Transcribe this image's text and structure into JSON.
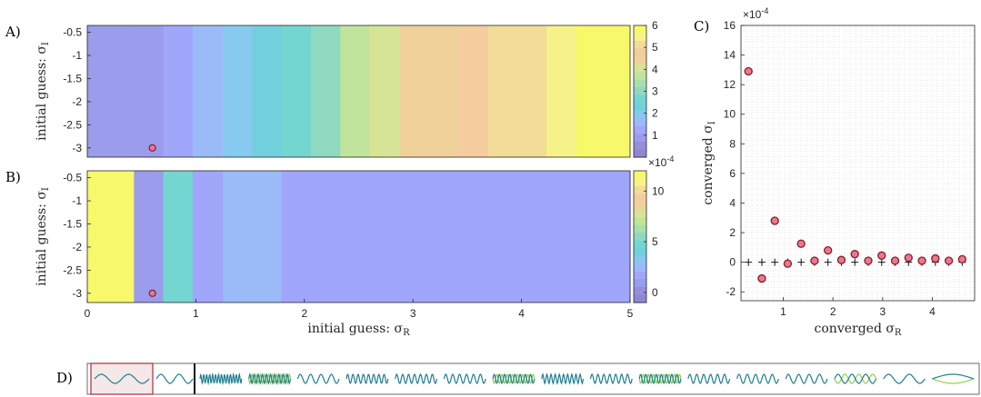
{
  "panel_labels": {
    "a": "A)",
    "b": "B)",
    "c": "C)",
    "d": "D)"
  },
  "colors": {
    "viridis_light": [
      "#9086d2",
      "#958ed8",
      "#9b9ceb",
      "#a0a6fa",
      "#9bbbf8",
      "#88c9ef",
      "#72d0dc",
      "#74d6d1",
      "#8ed9bf",
      "#a7e0ac",
      "#c0e49b",
      "#d6e595",
      "#f0d19a",
      "#f5cc9e",
      "#f2dc97",
      "#f6f28a",
      "#f7f86a"
    ],
    "marker_fill": "#e8798e",
    "marker_edge": "#8b1a2a",
    "wave_teal": "#1f7f8f",
    "wave_green": "#8fd14f",
    "highlight_box": "#b43a4a"
  },
  "chart_data": [
    {
      "id": "A",
      "type": "heatmap",
      "xlim": [
        0,
        5
      ],
      "ylim": [
        -3.2,
        -0.35
      ],
      "yticks": [
        "-0.5",
        "-1",
        "-1.5",
        "-2",
        "-2.5",
        "-3"
      ],
      "ylabel": "initial guess: σ",
      "ylabel_sub": "I",
      "column_edges": [
        0,
        0.43,
        0.7,
        0.97,
        1.25,
        1.52,
        1.79,
        2.06,
        2.33,
        2.6,
        2.88,
        3.15,
        3.42,
        3.69,
        3.96,
        4.23,
        4.5,
        4.77,
        5.0
      ],
      "column_values": [
        0.1,
        0.13,
        0.18,
        0.24,
        0.3,
        0.37,
        0.45,
        0.53,
        0.6,
        0.66,
        0.72,
        0.78,
        0.84,
        0.88,
        0.9,
        0.93,
        0.97,
        1.0
      ],
      "colorbar": {
        "ticks": [
          "6",
          "5",
          "4",
          "3",
          "2",
          "1"
        ],
        "exponent": "×10",
        "exponent_power": "-4",
        "range": [
          0,
          6
        ]
      },
      "marker": {
        "x": 0.6,
        "y": -3
      }
    },
    {
      "id": "B",
      "type": "heatmap",
      "xlim": [
        0,
        5
      ],
      "ylim": [
        -3.2,
        -0.35
      ],
      "xticks": [
        "0",
        "1",
        "2",
        "3",
        "4",
        "5"
      ],
      "yticks": [
        "-0.5",
        "-1",
        "-1.5",
        "-2",
        "-2.5",
        "-3"
      ],
      "xlabel": "initial guess: σ",
      "xlabel_sub": "R",
      "ylabel": "initial guess: σ",
      "ylabel_sub": "I",
      "column_edges": [
        0,
        0.43,
        0.7,
        0.97,
        1.25,
        1.52,
        1.79,
        2.06,
        2.33,
        2.6,
        2.88,
        3.15,
        3.42,
        3.69,
        3.96,
        4.23,
        4.5,
        4.77,
        5.0
      ],
      "column_values": [
        1.0,
        0.12,
        0.45,
        0.18,
        0.28,
        0.22,
        0.2,
        0.19,
        0.18,
        0.18,
        0.17,
        0.17,
        0.17,
        0.17,
        0.17,
        0.17,
        0.17,
        0.17
      ],
      "colorbar": {
        "ticks": [
          "10",
          "5",
          "0"
        ],
        "range": [
          -1,
          12
        ]
      },
      "marker": {
        "x": 0.6,
        "y": -3
      }
    },
    {
      "id": "C",
      "type": "scatter",
      "xlim": [
        0.15,
        4.85
      ],
      "ylim": [
        -2.6,
        16
      ],
      "xticks": [
        "1",
        "2",
        "3",
        "4"
      ],
      "yticks": [
        "16",
        "14",
        "12",
        "10",
        "8",
        "6",
        "4",
        "2",
        "0",
        "-2"
      ],
      "exponent": "×10",
      "exponent_power": "-4",
      "xlabel": "converged σ",
      "xlabel_sub": "R",
      "ylabel": "converged σ",
      "ylabel_sub": "I",
      "series": [
        {
          "marker": "circle",
          "x": [
            0.3,
            0.57,
            0.83,
            1.09,
            1.36,
            1.63,
            1.9,
            2.17,
            2.44,
            2.71,
            2.98,
            3.25,
            3.52,
            3.79,
            4.06,
            4.33,
            4.6
          ],
          "y": [
            12.9,
            -1.1,
            2.8,
            -0.1,
            1.25,
            0.1,
            0.8,
            0.15,
            0.55,
            0.1,
            0.45,
            0.1,
            0.3,
            0.1,
            0.25,
            0.1,
            0.2
          ]
        },
        {
          "marker": "plus",
          "x": [
            0.3,
            0.57,
            0.83,
            1.09,
            1.36,
            1.63,
            1.9,
            2.17,
            2.44,
            2.71,
            2.98,
            3.25,
            3.52,
            3.79,
            4.06,
            4.33,
            4.6
          ],
          "y": [
            0,
            0,
            0,
            0,
            0,
            0,
            0,
            0,
            0,
            0,
            0,
            0,
            0,
            0,
            0,
            0,
            0
          ]
        }
      ]
    },
    {
      "id": "D",
      "type": "strip",
      "cells": [
        {
          "cycles": 2.0,
          "dual": false,
          "highlight": true
        },
        {
          "cycles": 2.0,
          "dual": false
        },
        {
          "cycles": 14,
          "dual": false
        },
        {
          "cycles": 10,
          "dual": true
        },
        {
          "cycles": 4,
          "dual": false
        },
        {
          "cycles": 8,
          "dual": false
        },
        {
          "cycles": 7,
          "dual": false
        },
        {
          "cycles": 6,
          "dual": false
        },
        {
          "cycles": 8,
          "dual": true
        },
        {
          "cycles": 10,
          "dual": false
        },
        {
          "cycles": 7,
          "dual": false
        },
        {
          "cycles": 8,
          "dual": true
        },
        {
          "cycles": 6,
          "dual": false
        },
        {
          "cycles": 5,
          "dual": false
        },
        {
          "cycles": 4,
          "dual": false
        },
        {
          "cycles": 3,
          "dual": true
        },
        {
          "cycles": 2,
          "dual": false
        },
        {
          "cycles": 0.5,
          "dual": true
        }
      ]
    }
  ]
}
